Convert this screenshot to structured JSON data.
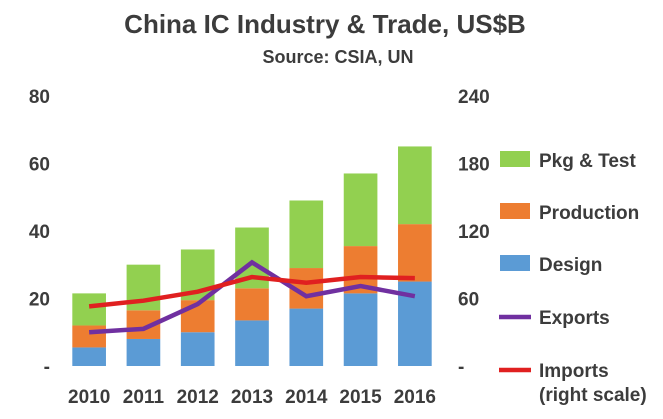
{
  "chart_data": {
    "type": "bar",
    "stacked": true,
    "title": "China IC Industry & Trade, US$B",
    "subtitle": "Source: CSIA, UN",
    "categories": [
      "2010",
      "2011",
      "2012",
      "2013",
      "2014",
      "2015",
      "2016"
    ],
    "y_left": {
      "ylim": [
        0,
        90
      ],
      "ticks": [
        0,
        20,
        40,
        60,
        80
      ],
      "tick_labels": [
        "-",
        "20",
        "40",
        "60",
        "80"
      ]
    },
    "y_right": {
      "ylim": [
        0,
        270
      ],
      "ticks": [
        0,
        60,
        120,
        180,
        240
      ],
      "tick_labels": [
        "-",
        "60",
        "120",
        "180",
        "240"
      ]
    },
    "series": [
      {
        "name": "Design",
        "type": "bar",
        "axis": "left",
        "color": "#5B9BD5",
        "values": [
          5.5,
          8,
          10,
          13.5,
          17,
          21.5,
          25
        ]
      },
      {
        "name": "Production",
        "type": "bar",
        "axis": "left",
        "color": "#ED7D31",
        "values": [
          6.5,
          8.5,
          9.5,
          9.5,
          12,
          14,
          17
        ]
      },
      {
        "name": "Pkg & Test",
        "type": "bar",
        "axis": "left",
        "color": "#92D050",
        "values": [
          9.5,
          13.5,
          15,
          18,
          20,
          21.5,
          23
        ]
      },
      {
        "name": "Exports",
        "type": "line",
        "axis": "right",
        "color": "#7030A0",
        "values": [
          30,
          33,
          55,
          92,
          62,
          71,
          62
        ]
      },
      {
        "name": "Imports",
        "type": "line",
        "axis": "right",
        "color": "#E02020",
        "values": [
          53,
          58,
          66,
          79,
          74,
          79,
          78
        ]
      }
    ],
    "legend_labels": [
      "Pkg & Test",
      "Production",
      "Design",
      "Exports",
      "Imports",
      "(right scale)"
    ],
    "legend_position": "right",
    "grid": false
  }
}
